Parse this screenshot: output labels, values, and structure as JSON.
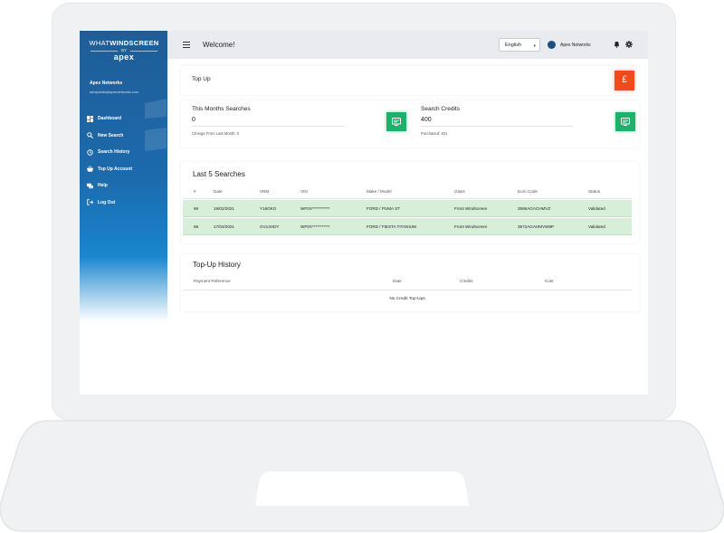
{
  "sidebar": {
    "logo": {
      "word1": "WHAT",
      "word2": "WINDSCREEN",
      "by": "BY",
      "brand": "apex"
    },
    "org_name": "Apex Networks",
    "org_email": "adrapnwks@apexnetworks.com",
    "items": [
      {
        "label": "Dashboard",
        "icon": "dashboard-icon"
      },
      {
        "label": "New Search",
        "icon": "search-icon"
      },
      {
        "label": "Search History",
        "icon": "history-icon"
      },
      {
        "label": "Top Up Account",
        "icon": "basket-icon"
      },
      {
        "label": "Help",
        "icon": "chat-icon"
      },
      {
        "label": "Log Out",
        "icon": "logout-icon"
      }
    ]
  },
  "topbar": {
    "title": "Welcome!",
    "language": "English",
    "user_name": "Apex Networks"
  },
  "topup": {
    "label": "Top Up",
    "button_symbol": "£"
  },
  "stats": {
    "month_searches": {
      "title": "This Months Searches",
      "value": "0",
      "sub": "Change From Last Month: 0"
    },
    "credits": {
      "title": "Search Credits",
      "value": "400",
      "sub": "Purchased: 401"
    }
  },
  "last_searches": {
    "title": "Last 5 Searches",
    "columns": [
      "#",
      "Date",
      "VRM",
      "VIN",
      "Make / Model",
      "Glass",
      "Euro Code",
      "Status"
    ],
    "rows": [
      [
        "69",
        "19/02/2021",
        "Y16OKO",
        "WF0X***********",
        "FORD / PUMA ST",
        "Front Windscreen",
        "3595AGACHMVZ",
        "Validated"
      ],
      [
        "68",
        "17/02/2021",
        "GV14HDY",
        "WF0X***********",
        "FORD / FIESTA TITANIUM",
        "Front Windscreen",
        "3572AGAHMVW6P",
        "Validated"
      ]
    ]
  },
  "topup_history": {
    "title": "Top-Up History",
    "columns": [
      "Payment Reference",
      "Date",
      "Credits",
      "Cost"
    ],
    "empty": "No Credit Top-Ups"
  },
  "colors": {
    "accent_red": "#f24a1d",
    "accent_green": "#1db26b",
    "sidebar_blue": "#1f5d97",
    "row_green": "#d7eed9"
  }
}
